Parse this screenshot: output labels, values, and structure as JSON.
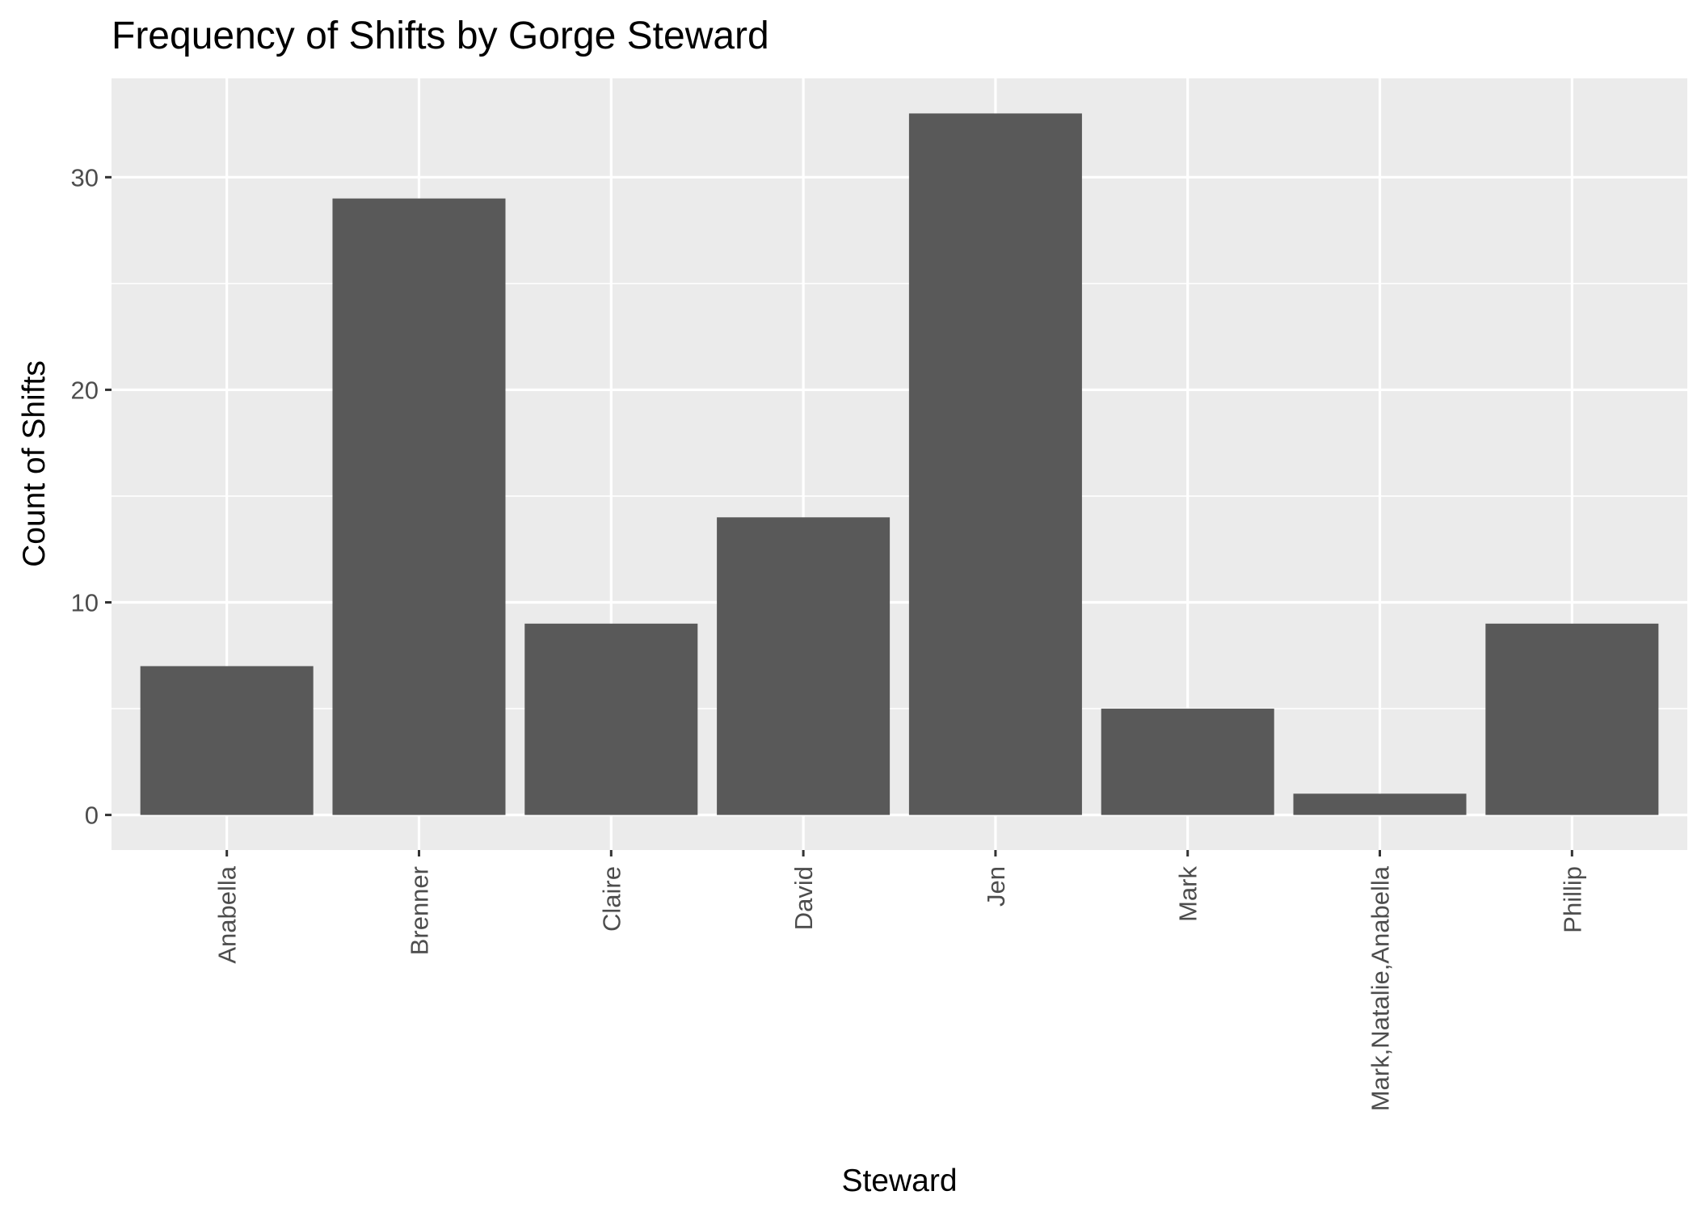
{
  "chart_data": {
    "type": "bar",
    "title": "Frequency of Shifts by Gorge Steward",
    "xlabel": "Steward",
    "ylabel": "Count of Shifts",
    "categories": [
      "Anabella",
      "Brenner",
      "Claire",
      "David",
      "Jen",
      "Mark",
      "Mark,Natalie,Anabella",
      "Phillip"
    ],
    "values": [
      7,
      29,
      9,
      14,
      33,
      5,
      1,
      9
    ],
    "ylim": [
      -1.65,
      34.65
    ],
    "yticks": [
      0,
      10,
      20,
      30
    ],
    "grid": true,
    "colors": {
      "panel_background": "#ebebeb",
      "grid": "#ffffff",
      "bar": "#595959",
      "tick": "#333333"
    }
  }
}
